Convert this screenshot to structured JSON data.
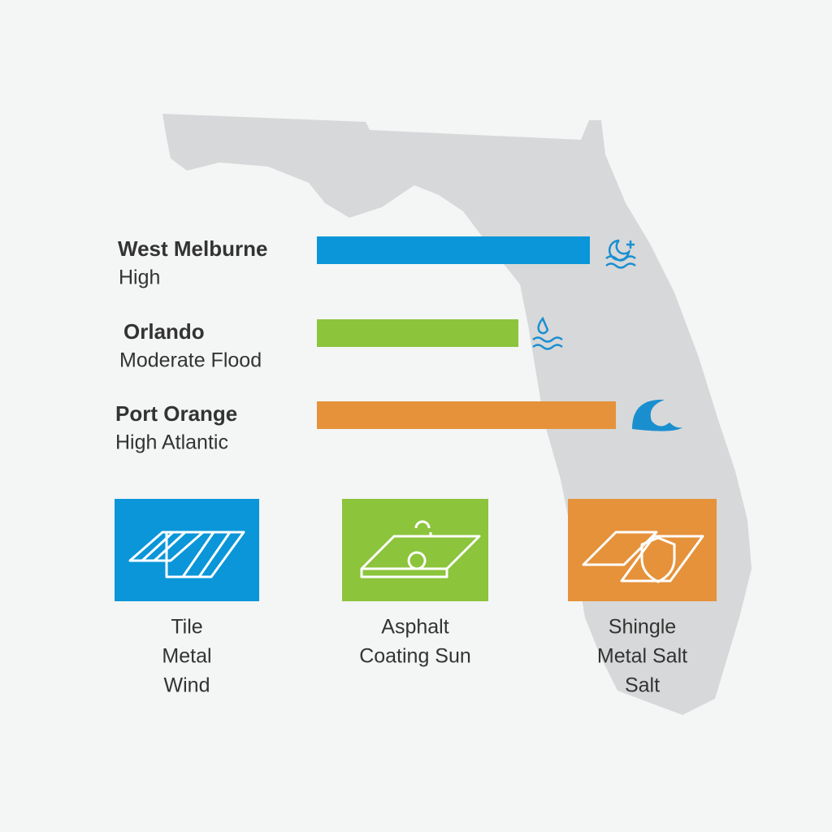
{
  "chart_data": {
    "type": "hbar",
    "categories": [
      "West Melburne",
      "Orlando",
      "Port Orange"
    ],
    "risk_labels": [
      "High",
      "Moderate Flood",
      "High Atlantic"
    ],
    "values": [
      84,
      62,
      92
    ],
    "colors": [
      "#0a96d8",
      "#8cc43c",
      "#e5923a"
    ],
    "xlim": [
      0,
      100
    ]
  },
  "roof_cards": [
    {
      "color": "#0a96d8",
      "lines": [
        "Tile",
        "Metal",
        "Wind"
      ]
    },
    {
      "color": "#8cc43c",
      "lines": [
        "Asphalt",
        "Coating Sun"
      ]
    },
    {
      "color": "#e5923a",
      "lines": [
        "Shingle",
        "Metal Salt",
        "Salt"
      ]
    }
  ]
}
